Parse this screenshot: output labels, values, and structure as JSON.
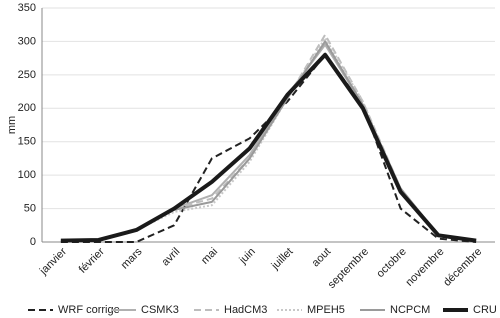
{
  "chart_data": {
    "type": "line",
    "y_label": "mm",
    "categories": [
      "janvier",
      "février",
      "mars",
      "avril",
      "mai",
      "juin",
      "juillet",
      "aout",
      "septembre",
      "octobre",
      "novembre",
      "décembre"
    ],
    "series": [
      {
        "name": "WRF corrige",
        "color": "#222222",
        "width": 2,
        "dash": "7,4",
        "values": [
          0,
          0,
          0,
          25,
          125,
          155,
          210,
          280,
          205,
          50,
          5,
          0
        ]
      },
      {
        "name": "CSMK3",
        "color": "#b0b0b0",
        "width": 2,
        "dash": "none",
        "values": [
          2,
          3,
          18,
          50,
          70,
          130,
          220,
          295,
          205,
          80,
          10,
          2
        ]
      },
      {
        "name": "HadCM3",
        "color": "#bdbdbd",
        "width": 2,
        "dash": "7,4",
        "values": [
          2,
          3,
          18,
          50,
          65,
          125,
          215,
          310,
          210,
          80,
          10,
          2
        ]
      },
      {
        "name": "MPEH5",
        "color": "#c8c8c8",
        "width": 2,
        "dash": "2,2",
        "values": [
          2,
          3,
          18,
          45,
          55,
          120,
          215,
          305,
          210,
          75,
          8,
          2
        ]
      },
      {
        "name": "NCPCM",
        "color": "#9a9a9a",
        "width": 2,
        "dash": "none",
        "values": [
          2,
          3,
          18,
          48,
          60,
          125,
          215,
          300,
          205,
          80,
          10,
          2
        ]
      },
      {
        "name": "CRU",
        "color": "#1a1a1a",
        "width": 4,
        "dash": "none",
        "values": [
          2,
          3,
          18,
          50,
          90,
          140,
          220,
          280,
          200,
          75,
          10,
          2
        ]
      }
    ],
    "ylim": [
      0,
      350
    ],
    "yticks": [
      0,
      50,
      100,
      150,
      200,
      250,
      300,
      350
    ],
    "grid": true
  }
}
